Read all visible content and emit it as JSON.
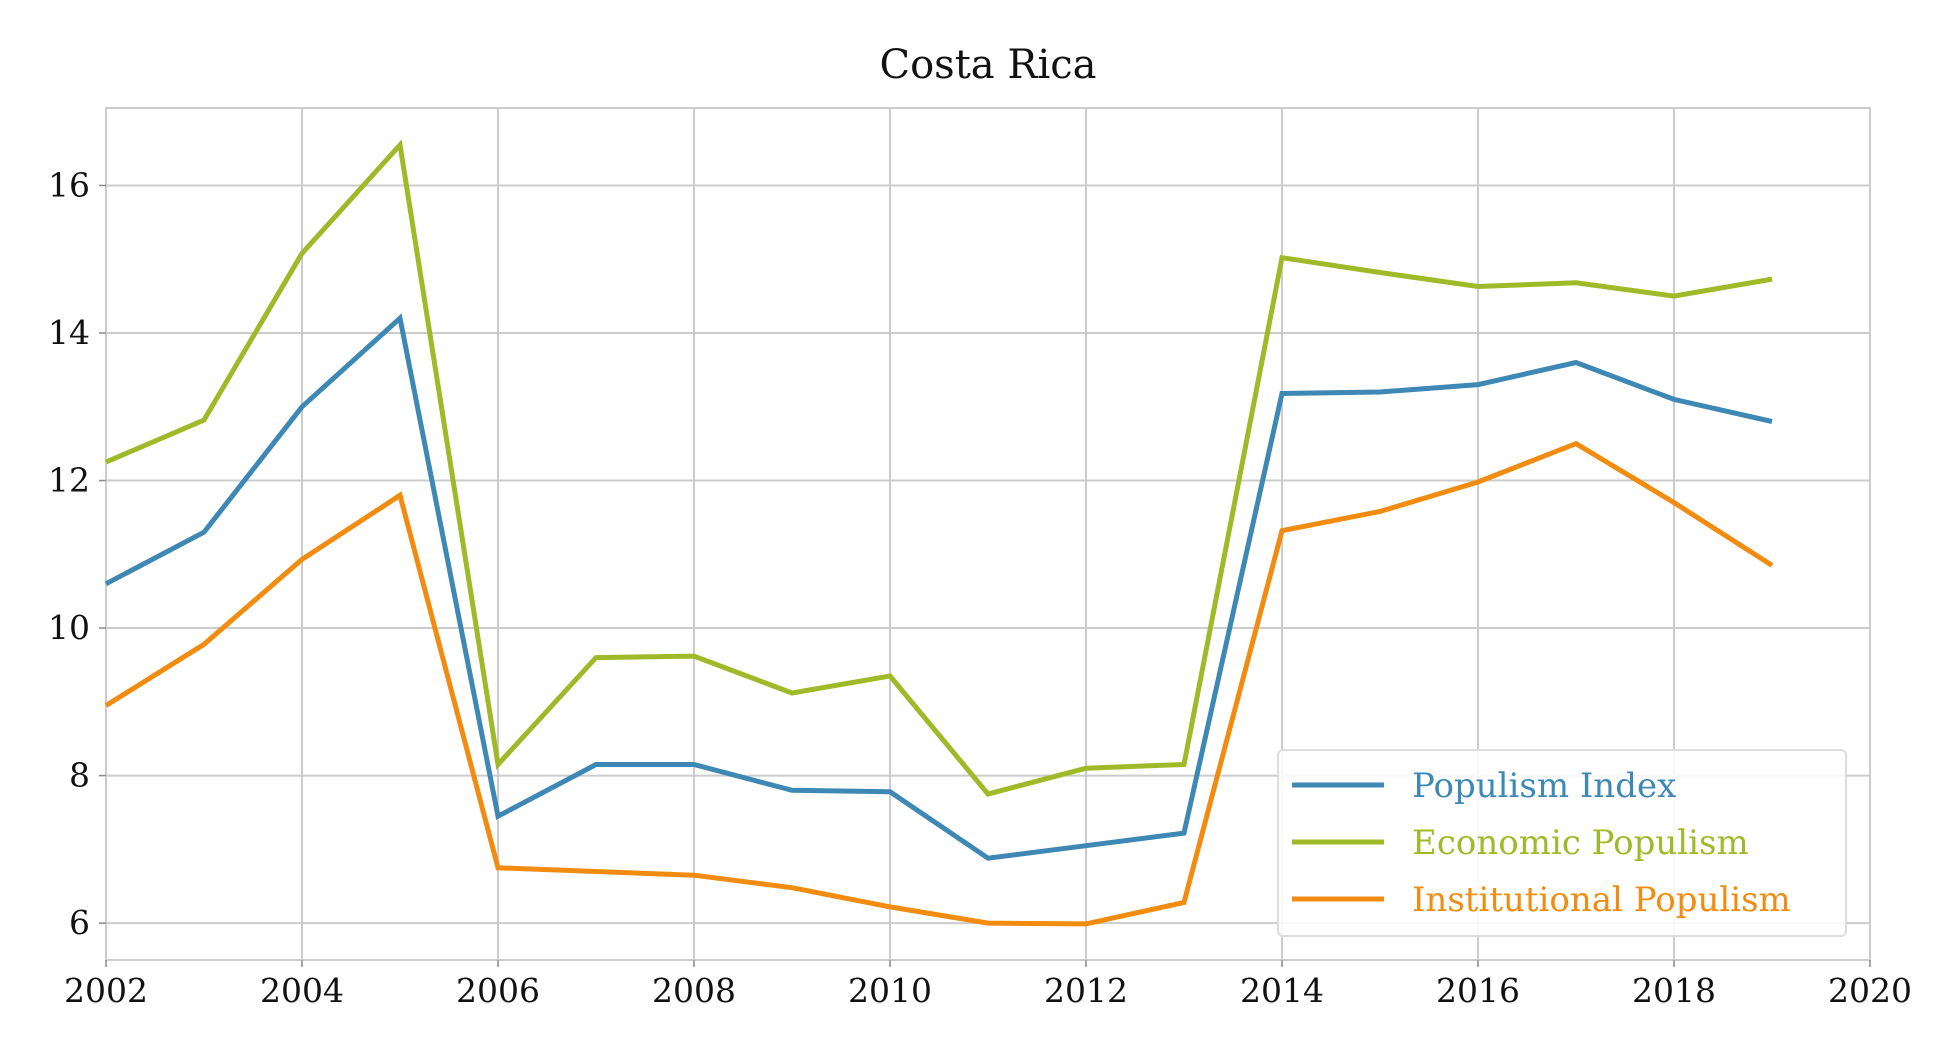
{
  "chart_data": {
    "type": "line",
    "title": "Costa Rica",
    "xlabel": "",
    "ylabel": "",
    "xlim": [
      2002,
      2020
    ],
    "ylim": [
      5.5,
      17.05
    ],
    "x_ticks": [
      "2002",
      "2004",
      "2006",
      "2008",
      "2010",
      "2012",
      "2014",
      "2016",
      "2018",
      "2020"
    ],
    "y_ticks": [
      "6",
      "8",
      "10",
      "12",
      "14",
      "16"
    ],
    "grid": true,
    "legend_position": "lower right",
    "x": [
      2002,
      2003,
      2004,
      2005,
      2006,
      2007,
      2008,
      2009,
      2010,
      2011,
      2012,
      2013,
      2014,
      2015,
      2016,
      2017,
      2018,
      2019
    ],
    "series": [
      {
        "name": "Populism Index",
        "color": "#3d88b4",
        "values": [
          10.6,
          11.3,
          13.0,
          14.2,
          7.45,
          8.15,
          8.15,
          7.8,
          7.78,
          6.88,
          7.05,
          7.22,
          13.18,
          13.2,
          13.3,
          13.6,
          13.1,
          12.8
        ]
      },
      {
        "name": "Economic Populism",
        "color": "#9fba28",
        "values": [
          12.25,
          12.82,
          15.08,
          16.55,
          8.15,
          9.6,
          9.62,
          9.12,
          9.35,
          7.75,
          8.1,
          8.15,
          15.02,
          14.82,
          14.63,
          14.68,
          14.5,
          14.73
        ]
      },
      {
        "name": "Institutional Populism",
        "color": "#f28c10",
        "values": [
          8.95,
          9.78,
          10.93,
          11.8,
          6.75,
          6.7,
          6.65,
          6.48,
          6.22,
          6.0,
          5.99,
          6.28,
          11.32,
          11.58,
          11.98,
          12.5,
          11.7,
          10.85
        ]
      }
    ]
  }
}
